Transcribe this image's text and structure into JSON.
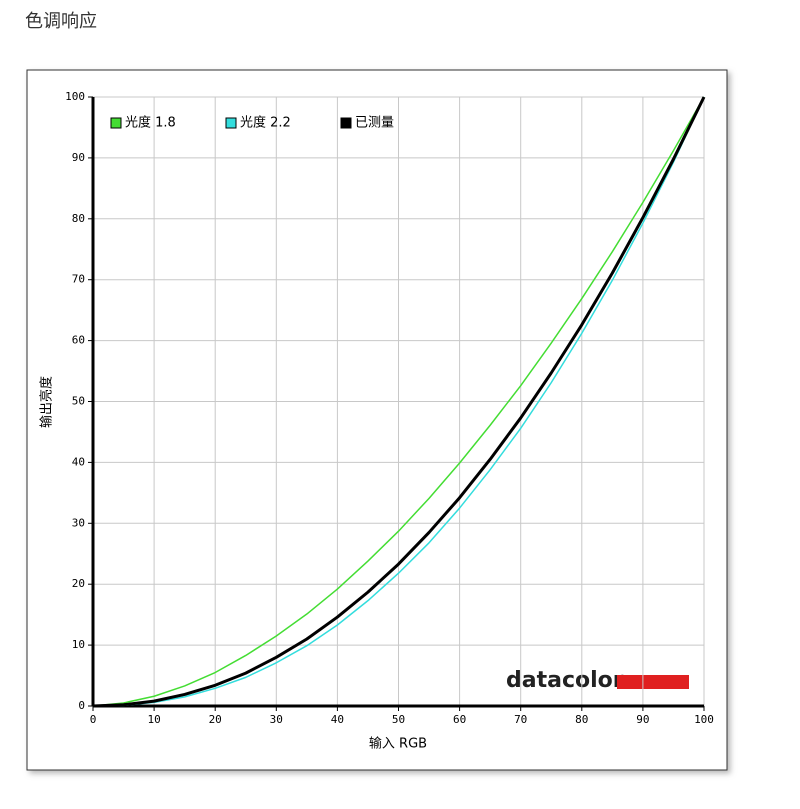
{
  "chart_data": {
    "type": "line",
    "title": "色调响应",
    "x_label": "输入 RGB",
    "y_label": "输出亮度",
    "watermark": "datacolor",
    "x": [
      0,
      5,
      10,
      15,
      20,
      25,
      30,
      35,
      40,
      45,
      50,
      55,
      60,
      65,
      70,
      75,
      80,
      85,
      90,
      95,
      100
    ],
    "series": [
      {
        "name": "光度 1.8",
        "color": "#44dd33",
        "width": 1.5,
        "values": [
          0,
          0.5,
          1.6,
          3.3,
          5.5,
          8.3,
          11.5,
          15.1,
          19.2,
          23.8,
          28.7,
          34.1,
          39.9,
          46.1,
          52.6,
          59.6,
          66.9,
          74.6,
          82.7,
          91.2,
          100
        ]
      },
      {
        "name": "光度 2.2",
        "color": "#33dddd",
        "width": 1.5,
        "values": [
          0,
          0.1,
          0.6,
          1.5,
          2.9,
          4.7,
          7.1,
          9.9,
          13.3,
          17.3,
          21.8,
          26.8,
          32.5,
          38.8,
          45.6,
          53.1,
          61.2,
          69.9,
          79.3,
          89.3,
          100
        ]
      },
      {
        "name": "已测量",
        "color": "#000000",
        "width": 3,
        "values": [
          0,
          0.2,
          0.8,
          1.9,
          3.4,
          5.4,
          8.0,
          11.0,
          14.6,
          18.7,
          23.3,
          28.5,
          34.2,
          40.5,
          47.3,
          54.7,
          62.6,
          71.1,
          80.2,
          89.8,
          100
        ]
      }
    ],
    "xlim": [
      0,
      100
    ],
    "ylim": [
      0,
      100
    ],
    "xticks": [
      0,
      10,
      20,
      30,
      40,
      50,
      60,
      70,
      80,
      90,
      100
    ],
    "yticks": [
      0,
      10,
      20,
      30,
      40,
      50,
      60,
      70,
      80,
      90,
      100
    ],
    "grid": true,
    "legend": "top-left"
  }
}
